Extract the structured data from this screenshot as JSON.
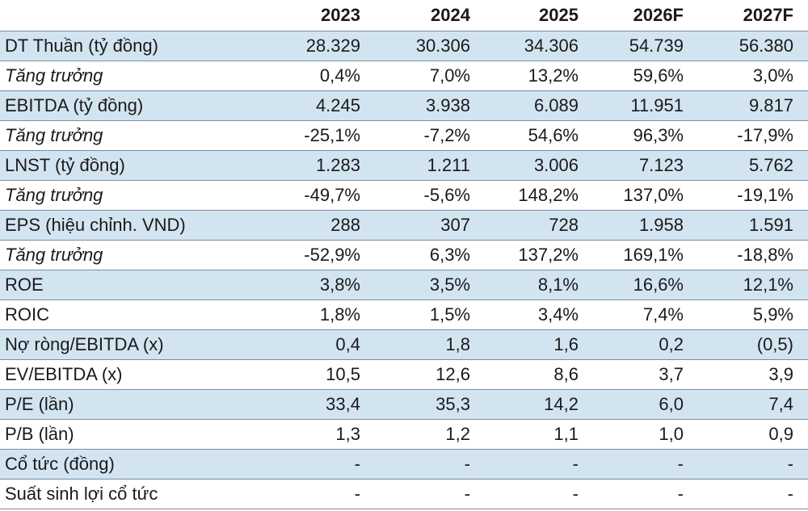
{
  "header": {
    "label": "",
    "years": [
      "2023",
      "2024",
      "2025",
      "2026F",
      "2027F"
    ]
  },
  "rows": [
    {
      "label": "DT Thuần (tỷ đồng)",
      "values": [
        "28.329",
        "30.306",
        "34.306",
        "54.739",
        "56.380"
      ],
      "shaded": true,
      "italic": false
    },
    {
      "label": "Tăng trưởng",
      "values": [
        "0,4%",
        "7,0%",
        "13,2%",
        "59,6%",
        "3,0%"
      ],
      "shaded": false,
      "italic": true
    },
    {
      "label": "EBITDA (tỷ đồng)",
      "values": [
        "4.245",
        "3.938",
        "6.089",
        "11.951",
        "9.817"
      ],
      "shaded": true,
      "italic": false
    },
    {
      "label": "Tăng trưởng",
      "values": [
        "-25,1%",
        "-7,2%",
        "54,6%",
        "96,3%",
        "-17,9%"
      ],
      "shaded": false,
      "italic": true
    },
    {
      "label": "LNST (tỷ đồng)",
      "values": [
        "1.283",
        "1.211",
        "3.006",
        "7.123",
        "5.762"
      ],
      "shaded": true,
      "italic": false
    },
    {
      "label": "Tăng trưởng",
      "values": [
        "-49,7%",
        "-5,6%",
        "148,2%",
        "137,0%",
        "-19,1%"
      ],
      "shaded": false,
      "italic": true
    },
    {
      "label": "EPS (hiệu chỉnh. VND)",
      "values": [
        "288",
        "307",
        "728",
        "1.958",
        "1.591"
      ],
      "shaded": true,
      "italic": false
    },
    {
      "label": "Tăng trưởng",
      "values": [
        "-52,9%",
        "6,3%",
        "137,2%",
        "169,1%",
        "-18,8%"
      ],
      "shaded": false,
      "italic": true
    },
    {
      "label": "ROE",
      "values": [
        "3,8%",
        "3,5%",
        "8,1%",
        "16,6%",
        "12,1%"
      ],
      "shaded": true,
      "italic": false
    },
    {
      "label": "ROIC",
      "values": [
        "1,8%",
        "1,5%",
        "3,4%",
        "7,4%",
        "5,9%"
      ],
      "shaded": false,
      "italic": false
    },
    {
      "label": "Nợ ròng/EBITDA (x)",
      "values": [
        "0,4",
        "1,8",
        "1,6",
        "0,2",
        "(0,5)"
      ],
      "shaded": true,
      "italic": false
    },
    {
      "label": "EV/EBITDA (x)",
      "values": [
        "10,5",
        "12,6",
        "8,6",
        "3,7",
        "3,9"
      ],
      "shaded": false,
      "italic": false
    },
    {
      "label": "P/E (lần)",
      "values": [
        "33,4",
        "35,3",
        "14,2",
        "6,0",
        "7,4"
      ],
      "shaded": true,
      "italic": false
    },
    {
      "label": "P/B (lần)",
      "values": [
        "1,3",
        "1,2",
        "1,1",
        "1,0",
        "0,9"
      ],
      "shaded": false,
      "italic": false
    },
    {
      "label": "Cổ tức (đồng)",
      "values": [
        "-",
        "-",
        "-",
        "-",
        "-"
      ],
      "shaded": true,
      "italic": false
    },
    {
      "label": "Suất sinh lợi cổ tức",
      "values": [
        "-",
        "-",
        "-",
        "-",
        "-"
      ],
      "shaded": false,
      "italic": false
    }
  ],
  "colors": {
    "shaded_row": "#d3e4f1",
    "rule": "#7a8da3",
    "text": "#1a1a1a"
  }
}
